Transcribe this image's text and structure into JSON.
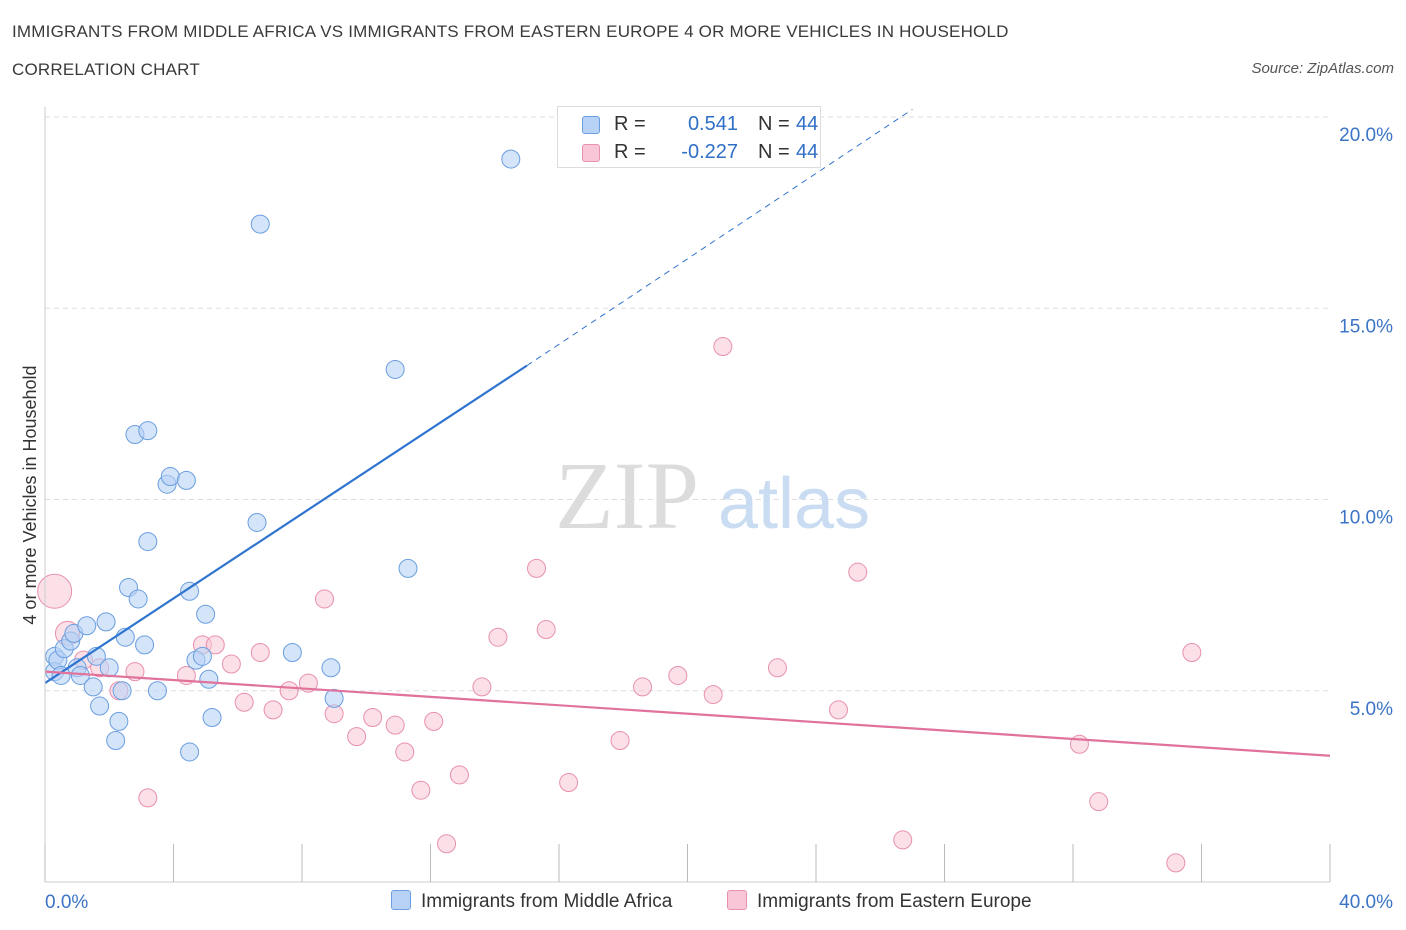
{
  "title": "IMMIGRANTS FROM MIDDLE AFRICA VS IMMIGRANTS FROM EASTERN EUROPE 4 OR MORE VEHICLES IN HOUSEHOLD",
  "subtitle": "CORRELATION CHART",
  "source": "Source: ZipAtlas.com",
  "watermark": {
    "zip": "ZIP",
    "atlas": "atlas"
  },
  "colors": {
    "blue_fill": "#b8d2f5",
    "blue_stroke": "#6a9ee0",
    "blue_line": "#2f74cf",
    "pink_fill": "#f8c6d6",
    "pink_stroke": "#e890ad",
    "pink_line": "#e0729c",
    "axis_label": "#3b74c6",
    "grid": "#dddddd"
  },
  "legend": {
    "rows": [
      {
        "r_label": "R =",
        "r_value": "0.541",
        "n_label": "N =",
        "n_value": "44"
      },
      {
        "r_label": "R =",
        "r_value": "-0.227",
        "n_label": "N =",
        "n_value": "44"
      }
    ]
  },
  "bottom_legend": {
    "series1": "Immigrants from Middle Africa",
    "series2": "Immigrants from Eastern Europe"
  },
  "chart_data": {
    "type": "scatter",
    "title": "IMMIGRANTS FROM MIDDLE AFRICA VS IMMIGRANTS FROM EASTERN EUROPE 4 OR MORE VEHICLES IN HOUSEHOLD",
    "ylabel": "4 or more Vehicles in Household",
    "xlabel": "",
    "xlim": [
      0,
      40
    ],
    "ylim": [
      0,
      20
    ],
    "x_tick_labels": [
      {
        "value": 0,
        "label": "0.0%"
      },
      {
        "value": 40,
        "label": "40.0%"
      }
    ],
    "y_tick_labels": [
      {
        "value": 5,
        "label": "5.0%"
      },
      {
        "value": 10,
        "label": "10.0%"
      },
      {
        "value": 15,
        "label": "15.0%"
      },
      {
        "value": 20,
        "label": "20.0%"
      }
    ],
    "y_gridlines": [
      5,
      10,
      15,
      20
    ],
    "x_ticks": [
      0,
      4,
      8,
      12,
      16,
      20,
      24,
      28,
      32,
      36,
      40
    ],
    "series": [
      {
        "name": "Immigrants from Middle Africa",
        "color": "blue",
        "points": [
          [
            0.3,
            5.9
          ],
          [
            0.3,
            5.5
          ],
          [
            0.4,
            5.8
          ],
          [
            0.5,
            5.4
          ],
          [
            0.6,
            6.1
          ],
          [
            0.8,
            6.3
          ],
          [
            0.9,
            6.5
          ],
          [
            1.0,
            5.6
          ],
          [
            1.1,
            5.4
          ],
          [
            1.3,
            6.7
          ],
          [
            1.5,
            5.1
          ],
          [
            1.6,
            5.9
          ],
          [
            1.7,
            4.6
          ],
          [
            1.9,
            6.8
          ],
          [
            2.0,
            5.6
          ],
          [
            2.2,
            3.7
          ],
          [
            2.3,
            4.2
          ],
          [
            2.4,
            5.0
          ],
          [
            2.5,
            6.4
          ],
          [
            2.6,
            7.7
          ],
          [
            2.8,
            11.7
          ],
          [
            2.9,
            7.4
          ],
          [
            3.1,
            6.2
          ],
          [
            3.2,
            8.9
          ],
          [
            3.2,
            11.8
          ],
          [
            3.5,
            5.0
          ],
          [
            3.8,
            10.4
          ],
          [
            3.9,
            10.6
          ],
          [
            4.4,
            10.5
          ],
          [
            4.5,
            3.4
          ],
          [
            4.5,
            7.6
          ],
          [
            4.7,
            5.8
          ],
          [
            4.9,
            5.9
          ],
          [
            5.0,
            7.0
          ],
          [
            5.1,
            5.3
          ],
          [
            5.2,
            4.3
          ],
          [
            6.6,
            9.4
          ],
          [
            6.7,
            17.2
          ],
          [
            7.7,
            6.0
          ],
          [
            8.9,
            5.6
          ],
          [
            9.0,
            4.8
          ],
          [
            10.9,
            13.4
          ],
          [
            11.3,
            8.2
          ],
          [
            14.5,
            18.9
          ]
        ],
        "trend": {
          "x1": 0,
          "y1": 5.2,
          "x2": 15,
          "y2": 13.5,
          "dashed_to": [
            27,
            20.2
          ]
        }
      },
      {
        "name": "Immigrants from Eastern Europe",
        "color": "pink",
        "points": [
          [
            0.3,
            7.6
          ],
          [
            0.7,
            6.5
          ],
          [
            1.2,
            5.8
          ],
          [
            1.7,
            5.6
          ],
          [
            2.3,
            5.0
          ],
          [
            2.8,
            5.5
          ],
          [
            3.2,
            2.2
          ],
          [
            4.4,
            5.4
          ],
          [
            4.9,
            6.2
          ],
          [
            5.3,
            6.2
          ],
          [
            5.8,
            5.7
          ],
          [
            6.2,
            4.7
          ],
          [
            6.7,
            6.0
          ],
          [
            7.1,
            4.5
          ],
          [
            7.6,
            5.0
          ],
          [
            8.2,
            5.2
          ],
          [
            8.7,
            7.4
          ],
          [
            9.0,
            4.4
          ],
          [
            9.7,
            3.8
          ],
          [
            10.2,
            4.3
          ],
          [
            10.9,
            4.1
          ],
          [
            11.2,
            3.4
          ],
          [
            11.7,
            2.4
          ],
          [
            12.1,
            4.2
          ],
          [
            12.5,
            1.0
          ],
          [
            12.9,
            2.8
          ],
          [
            13.6,
            5.1
          ],
          [
            14.1,
            6.4
          ],
          [
            15.3,
            8.2
          ],
          [
            15.6,
            6.6
          ],
          [
            16.3,
            2.6
          ],
          [
            17.9,
            3.7
          ],
          [
            18.6,
            5.1
          ],
          [
            19.7,
            5.4
          ],
          [
            20.8,
            4.9
          ],
          [
            21.1,
            14.0
          ],
          [
            22.8,
            5.6
          ],
          [
            24.7,
            4.5
          ],
          [
            25.3,
            8.1
          ],
          [
            26.7,
            1.1
          ],
          [
            32.2,
            3.6
          ],
          [
            32.8,
            2.1
          ],
          [
            35.2,
            0.5
          ],
          [
            35.7,
            6.0
          ]
        ],
        "trend": {
          "x1": 0,
          "y1": 5.5,
          "x2": 40,
          "y2": 3.3
        }
      }
    ],
    "legend_placement": "top-center",
    "grid": true
  }
}
